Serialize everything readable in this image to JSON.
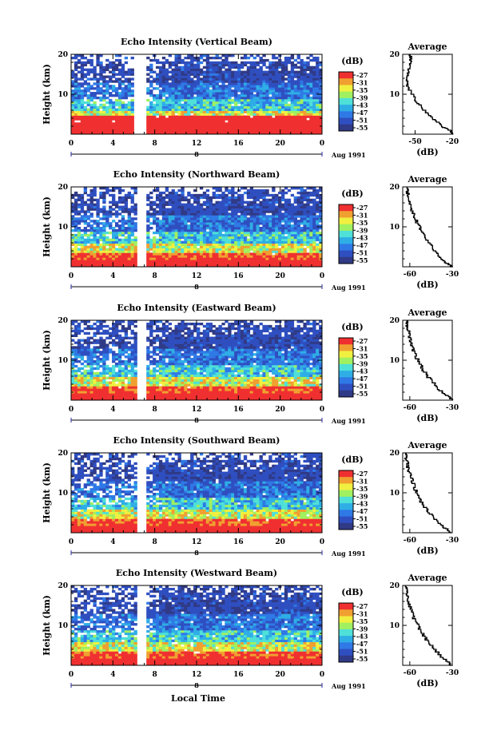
{
  "figure": {
    "xlabel": "Local Time",
    "date_label": "Aug 1991",
    "colorbar_label": "(dB)",
    "colorbar_ticks": [
      "-27",
      "-31",
      "-35",
      "-39",
      "-43",
      "-47",
      "-51",
      "-55"
    ],
    "avg_title": "Average",
    "avg_xlabel": "(dB)",
    "ylabel": "Height (km)",
    "day_marker": "8"
  },
  "colors": {
    "colormap": [
      "#303a86",
      "#2f4fc0",
      "#2f79e6",
      "#2faee6",
      "#4fe0d8",
      "#a0f060",
      "#f0f040",
      "#f0a030",
      "#f03030"
    ]
  },
  "chart_data": [
    {
      "type": "heatmap",
      "title": "Echo Intensity (Vertical Beam)",
      "ylabel": "Height (km)",
      "x_ticks": [
        "0",
        "4",
        "8",
        "12",
        "16",
        "20",
        "0"
      ],
      "y_ticks": [
        "20",
        "10"
      ],
      "xlim": [
        0,
        24
      ],
      "ylim": [
        0,
        20
      ],
      "gap_hours": [
        6.2,
        7.0
      ],
      "color_range_db": [
        -55,
        -27
      ],
      "profile_db": [
        [
          -25,
          0
        ],
        [
          -30,
          2
        ],
        [
          -40,
          5
        ],
        [
          -45,
          7
        ],
        [
          -50,
          10
        ],
        [
          -53,
          12
        ],
        [
          -55,
          15
        ],
        [
          -53,
          18
        ],
        [
          -52,
          20
        ]
      ],
      "avg": {
        "type": "line",
        "title": "Average",
        "xlabel": "(dB)",
        "x_ticks": [
          "-50",
          "-20"
        ],
        "y_ticks": [
          "20",
          "10"
        ],
        "xlim": [
          -60,
          -20
        ],
        "ylim": [
          0,
          20
        ],
        "x": [
          -20,
          -22,
          -28,
          -35,
          -42,
          -48,
          -52,
          -56,
          -57,
          -55,
          -54,
          -53,
          -54
        ],
        "y": [
          0,
          1,
          2,
          4,
          6,
          8,
          10,
          12,
          14,
          16,
          18,
          19,
          20
        ]
      }
    },
    {
      "type": "heatmap",
      "title": "Echo Intensity (Northward Beam)",
      "ylabel": "Height (km)",
      "x_ticks": [
        "0",
        "4",
        "8",
        "12",
        "16",
        "20",
        "0"
      ],
      "y_ticks": [
        "20",
        "10"
      ],
      "xlim": [
        0,
        24
      ],
      "ylim": [
        0,
        20
      ],
      "gap_hours": [
        6.4,
        7.2
      ],
      "color_range_db": [
        -55,
        -27
      ],
      "avg": {
        "type": "line",
        "title": "Average",
        "xlabel": "(dB)",
        "x_ticks": [
          "-60",
          "-30"
        ],
        "y_ticks": [
          "20",
          "10"
        ],
        "xlim": [
          -65,
          -30
        ],
        "ylim": [
          0,
          20
        ],
        "x": [
          -30,
          -34,
          -38,
          -42,
          -46,
          -50,
          -53,
          -56,
          -58,
          -60,
          -61,
          -62,
          -62
        ],
        "y": [
          0,
          1,
          2,
          4,
          6,
          8,
          10,
          12,
          14,
          16,
          18,
          19,
          20
        ]
      }
    },
    {
      "type": "heatmap",
      "title": "Echo Intensity (Eastward Beam)",
      "ylabel": "Height (km)",
      "x_ticks": [
        "0",
        "4",
        "8",
        "12",
        "16",
        "20",
        "0"
      ],
      "y_ticks": [
        "20",
        "10"
      ],
      "xlim": [
        0,
        24
      ],
      "ylim": [
        0,
        20
      ],
      "gap_hours": [
        6.4,
        7.2
      ],
      "color_range_db": [
        -55,
        -27
      ],
      "avg": {
        "type": "line",
        "title": "Average",
        "xlabel": "(dB)",
        "x_ticks": [
          "-60",
          "-30"
        ],
        "y_ticks": [
          "20",
          "10"
        ],
        "xlim": [
          -65,
          -30
        ],
        "ylim": [
          0,
          20
        ],
        "x": [
          -30,
          -33,
          -37,
          -42,
          -47,
          -51,
          -54,
          -57,
          -59,
          -60,
          -61,
          -62,
          -62
        ],
        "y": [
          0,
          1,
          2,
          4,
          6,
          8,
          10,
          12,
          14,
          16,
          18,
          19,
          20
        ]
      }
    },
    {
      "type": "heatmap",
      "title": "Echo Intensity (Southward Beam)",
      "ylabel": "Height (km)",
      "x_ticks": [
        "0",
        "4",
        "8",
        "12",
        "16",
        "20",
        "0"
      ],
      "y_ticks": [
        "20",
        "10"
      ],
      "xlim": [
        0,
        24
      ],
      "ylim": [
        0,
        20
      ],
      "gap_hours": [
        6.4,
        7.2
      ],
      "color_range_db": [
        -55,
        -27
      ],
      "avg": {
        "type": "line",
        "title": "Average",
        "xlabel": "(dB)",
        "x_ticks": [
          "-60",
          "-30"
        ],
        "y_ticks": [
          "20",
          "10"
        ],
        "xlim": [
          -65,
          -30
        ],
        "ylim": [
          0,
          20
        ],
        "x": [
          -30,
          -34,
          -38,
          -43,
          -48,
          -52,
          -55,
          -57,
          -59,
          -61,
          -62,
          -63,
          -63
        ],
        "y": [
          0,
          1,
          2,
          4,
          6,
          8,
          10,
          12,
          14,
          16,
          18,
          19,
          20
        ]
      }
    },
    {
      "type": "heatmap",
      "title": "Echo Intensity (Westward Beam)",
      "ylabel": "Height (km)",
      "x_ticks": [
        "0",
        "4",
        "8",
        "12",
        "16",
        "20",
        "0"
      ],
      "y_ticks": [
        "20",
        "10"
      ],
      "xlim": [
        0,
        24
      ],
      "ylim": [
        0,
        20
      ],
      "gap_hours": [
        6.4,
        7.2
      ],
      "color_range_db": [
        -55,
        -27
      ],
      "avg": {
        "type": "line",
        "title": "Average",
        "xlabel": "(dB)",
        "x_ticks": [
          "-60",
          "-30"
        ],
        "y_ticks": [
          "20",
          "10"
        ],
        "xlim": [
          -65,
          -30
        ],
        "ylim": [
          0,
          20
        ],
        "x": [
          -30,
          -33,
          -37,
          -42,
          -47,
          -51,
          -54,
          -57,
          -59,
          -61,
          -62,
          -62,
          -63
        ],
        "y": [
          0,
          1,
          2,
          4,
          6,
          8,
          10,
          12,
          14,
          16,
          18,
          19,
          20
        ]
      }
    }
  ]
}
